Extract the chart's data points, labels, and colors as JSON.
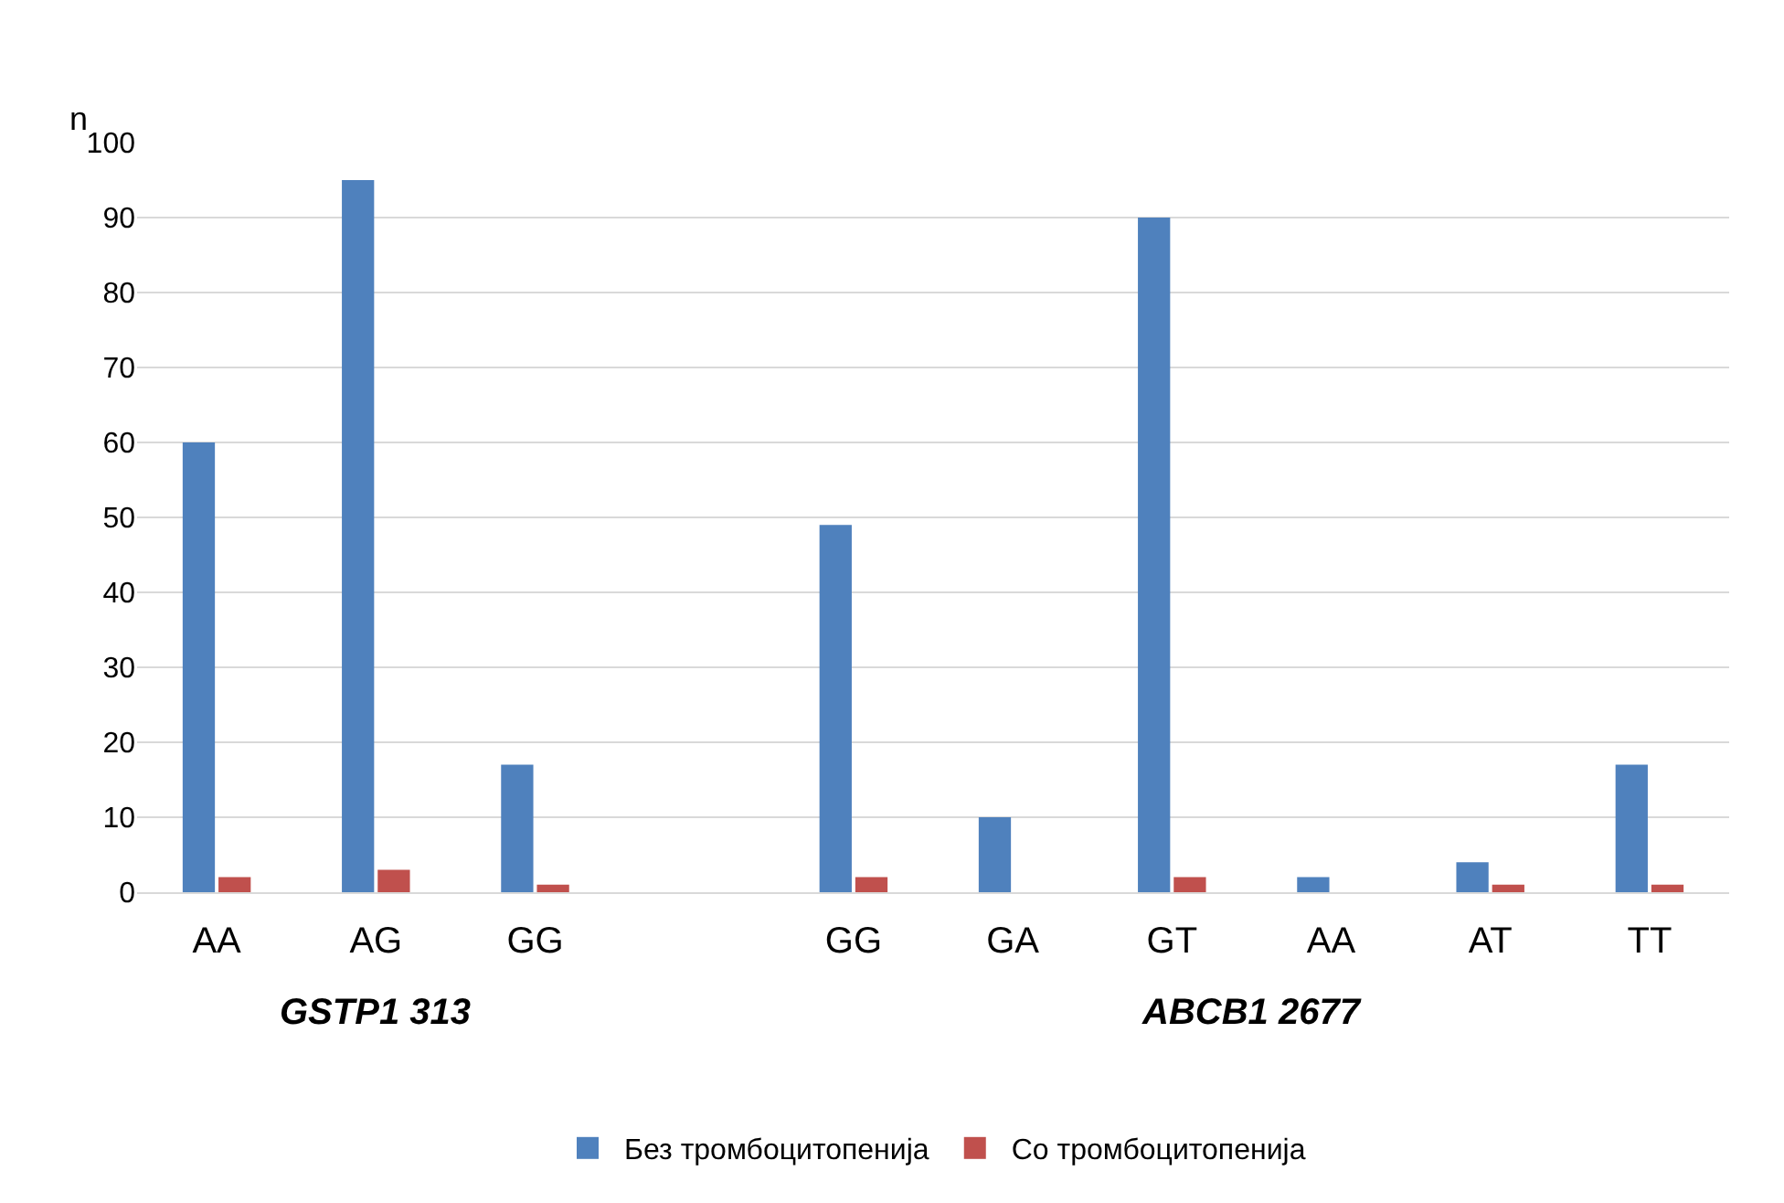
{
  "chart_data": {
    "type": "bar",
    "ylabel": "n",
    "categories": [
      "AA",
      "AG",
      "GG",
      null,
      "GG",
      "GA",
      "GT",
      "AA",
      "AT",
      "TT"
    ],
    "series": [
      {
        "name": "Без тромбоцитопенија",
        "color": "#4f81bd",
        "values": [
          60,
          95,
          17,
          null,
          49,
          10,
          90,
          2,
          4,
          17
        ]
      },
      {
        "name": "Со тромбоцитопенија",
        "color": "#c0504d",
        "values": [
          2,
          3,
          1,
          null,
          2,
          0,
          2,
          0,
          1,
          1
        ]
      }
    ],
    "ylim": [
      0,
      100
    ],
    "yticks": [
      0,
      10,
      20,
      30,
      40,
      50,
      60,
      70,
      80,
      90,
      100
    ],
    "grid": "y",
    "legend": "bottom",
    "annotations": [
      "GSTP1 313",
      "ABCB1 2677"
    ]
  }
}
